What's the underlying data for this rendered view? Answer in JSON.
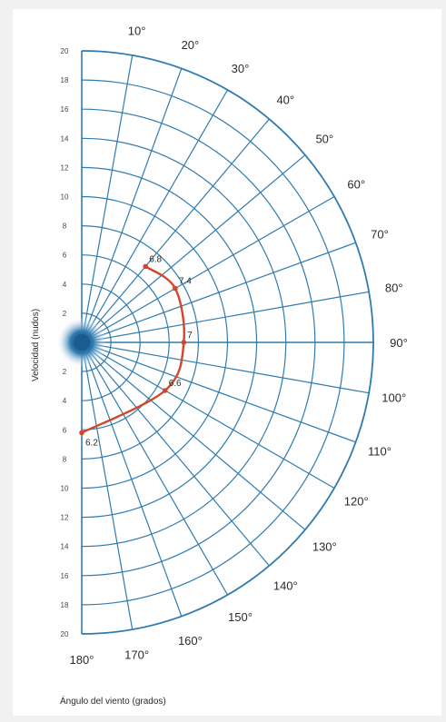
{
  "chart_data": {
    "type": "polar-line",
    "title": "",
    "angle_axis_label": "Ángulo del viento (grados)",
    "radial_axis_label": "Velocidad (nudos)",
    "radial_ticks": [
      2,
      4,
      6,
      8,
      10,
      12,
      14,
      16,
      18,
      20
    ],
    "rlim": [
      0,
      20
    ],
    "angle_ticks": [
      {
        "value": 10,
        "label": "10°"
      },
      {
        "value": 20,
        "label": "20°"
      },
      {
        "value": 30,
        "label": "30°"
      },
      {
        "value": 40,
        "label": "40°"
      },
      {
        "value": 50,
        "label": "50°"
      },
      {
        "value": 60,
        "label": "60°"
      },
      {
        "value": 70,
        "label": "70°"
      },
      {
        "value": 80,
        "label": "80°"
      },
      {
        "value": 90,
        "label": "90°"
      },
      {
        "value": 100,
        "label": "100°"
      },
      {
        "value": 110,
        "label": "110°"
      },
      {
        "value": 120,
        "label": "120°"
      },
      {
        "value": 130,
        "label": "130°"
      },
      {
        "value": 140,
        "label": "140°"
      },
      {
        "value": 150,
        "label": "150°"
      },
      {
        "value": 160,
        "label": "160°"
      },
      {
        "value": 170,
        "label": "170°"
      },
      {
        "value": 180,
        "label": "180°"
      }
    ],
    "alim": [
      0,
      180
    ],
    "angular_grid_step": 10,
    "grid": true,
    "series": [
      {
        "name": "",
        "points": [
          {
            "angle": 40,
            "speed": 6.8
          },
          {
            "angle": 60,
            "speed": 7.4
          },
          {
            "angle": 90,
            "speed": 7
          },
          {
            "angle": 120,
            "speed": 6.6
          },
          {
            "angle": 180,
            "speed": 6.2
          }
        ],
        "point_labels": [
          "6.8",
          "7.4",
          "7",
          "6.6",
          "6.2"
        ],
        "color": "#d2462a"
      }
    ],
    "colors": {
      "grid": "#2f7bb0",
      "curve": "#d2462a",
      "center": "#1a5c8f"
    }
  }
}
